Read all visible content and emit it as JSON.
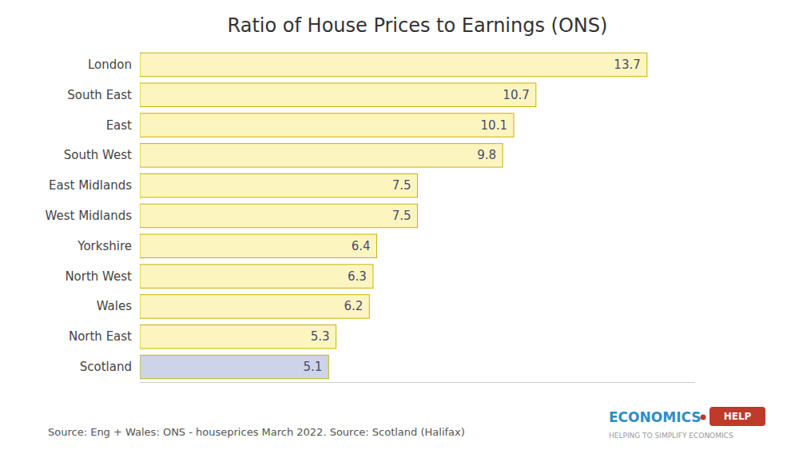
{
  "chart_data": {
    "type": "bar",
    "orientation": "horizontal",
    "title": "Ratio of House Prices to Earnings (ONS)",
    "categories": [
      "Scotland",
      "North East",
      "Wales",
      "North West",
      "Yorkshire",
      "West Midlands",
      "East Midlands",
      "South West",
      "East",
      "South East",
      "London"
    ],
    "values": [
      5.1,
      5.3,
      6.2,
      6.3,
      6.4,
      7.5,
      7.5,
      9.8,
      10.1,
      10.7,
      13.7
    ],
    "colors": [
      "#cdd3e8",
      "#fdf5c0",
      "#fdf5c0",
      "#fdf5c0",
      "#fdf5c0",
      "#fdf5c0",
      "#fdf5c0",
      "#fdf5c0",
      "#fdf5c0",
      "#fdf5c0",
      "#fdf5c0"
    ],
    "xlim": [
      0,
      15
    ],
    "grid": false,
    "tick_labels": "y",
    "data_labels": true,
    "annotations": [
      "Source: Eng + Wales: ONS - houseprices March 2022. Source: Scotland (Halifax)",
      "ECONOMICS",
      "HELP",
      "HELPING TO SIMPLIFY ECONOMICS"
    ]
  }
}
